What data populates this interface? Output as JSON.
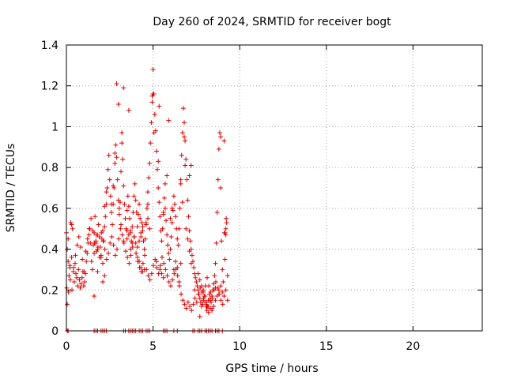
{
  "chart_data": {
    "type": "scatter",
    "title": "Day 260 of 2024, SRMTID for receiver bogt",
    "xlabel": "GPS time / hours",
    "ylabel": "SRMTID / TECUs",
    "xlim": [
      0,
      24
    ],
    "ylim": [
      0,
      1.4
    ],
    "xticks": [
      0,
      5,
      10,
      15,
      20
    ],
    "xtick_labels": [
      "0",
      "5",
      "10",
      "15",
      "20"
    ],
    "yticks": [
      0,
      0.2,
      0.4,
      0.6,
      0.8,
      1.0,
      1.2,
      1.4
    ],
    "ytick_labels": [
      "0",
      "0.2",
      "0.4",
      "0.6",
      "0.8",
      "1",
      "1.2",
      "1.4"
    ],
    "grid": true,
    "marker": "+",
    "color": "#dd0000",
    "series": [
      {
        "name": "SRMTID",
        "x": [
          0.0,
          0.05,
          0.1,
          0.15,
          0.2,
          0.25,
          0.3,
          0.35,
          0.4,
          0.45,
          0.5,
          0.55,
          0.6,
          0.65,
          0.7,
          0.75,
          0.8,
          0.85,
          0.9,
          0.95,
          1.0,
          1.05,
          1.1,
          1.15,
          1.2,
          1.25,
          1.3,
          1.35,
          1.4,
          1.45,
          1.5,
          1.55,
          1.6,
          1.65,
          1.7,
          1.75,
          1.8,
          1.85,
          1.9,
          1.95,
          2.0,
          2.05,
          2.1,
          2.15,
          2.2,
          2.25,
          2.3,
          2.35,
          2.4,
          2.45,
          2.5,
          2.55,
          2.6,
          2.65,
          2.7,
          2.75,
          2.8,
          2.85,
          2.9,
          2.95,
          3.0,
          3.05,
          3.1,
          3.15,
          3.2,
          3.25,
          3.3,
          3.35,
          3.4,
          3.45,
          3.5,
          3.55,
          3.6,
          3.65,
          3.7,
          3.75,
          3.8,
          3.85,
          3.9,
          3.95,
          4.0,
          4.05,
          4.1,
          4.15,
          4.2,
          4.25,
          4.3,
          4.35,
          4.4,
          4.45,
          4.5,
          4.55,
          4.6,
          4.65,
          4.7,
          4.75,
          4.8,
          4.85,
          4.9,
          4.95,
          5.0,
          5.05,
          5.1,
          5.15,
          5.2,
          5.25,
          5.3,
          5.35,
          5.4,
          5.45,
          5.5,
          5.55,
          5.6,
          5.65,
          5.7,
          5.75,
          5.8,
          5.85,
          5.9,
          5.95,
          6.0,
          6.05,
          6.1,
          6.15,
          6.2,
          6.25,
          6.3,
          6.35,
          6.4,
          6.45,
          6.5,
          6.55,
          6.6,
          6.65,
          6.7,
          6.75,
          6.8,
          6.85,
          6.9,
          6.95,
          7.0,
          7.05,
          7.1,
          7.15,
          7.2,
          7.25,
          7.3,
          7.35,
          7.4,
          7.45,
          7.5,
          7.55,
          7.6,
          7.65,
          7.7,
          7.75,
          7.8,
          7.85,
          7.9,
          7.95,
          8.0,
          8.05,
          8.1,
          8.15,
          8.2,
          8.25,
          8.3,
          8.35,
          8.4,
          8.45,
          8.5,
          8.55,
          8.6,
          8.65,
          8.7,
          8.75,
          8.8,
          8.85,
          8.9,
          8.95,
          9.0,
          9.05,
          9.1,
          9.15,
          9.2,
          9.25,
          9.3,
          0.02,
          0.12,
          0.22,
          0.32,
          0.42,
          0.52,
          0.62,
          0.72,
          0.82,
          0.92,
          1.02,
          1.12,
          1.22,
          1.32,
          1.42,
          1.52,
          1.62,
          1.72,
          1.82,
          1.92,
          2.02,
          2.12,
          2.22,
          2.32,
          2.42,
          2.52,
          2.62,
          2.72,
          2.82,
          2.92,
          3.02,
          3.12,
          3.22,
          3.32,
          3.42,
          3.52,
          3.62,
          3.72,
          3.82,
          3.92,
          4.02,
          4.12,
          4.22,
          4.32,
          4.42,
          4.52,
          4.62,
          4.72,
          4.82,
          4.92,
          5.02,
          5.12,
          5.22,
          5.32,
          5.42,
          5.52,
          5.62,
          5.72,
          5.82,
          5.92,
          6.02,
          6.12,
          6.22,
          6.32,
          6.42,
          6.52,
          6.62,
          6.72,
          6.82,
          6.92,
          7.02,
          7.12,
          7.22,
          7.32,
          7.42,
          7.52,
          7.62,
          7.72,
          7.82,
          7.92,
          8.02,
          8.12,
          8.22,
          8.32,
          8.42,
          8.52,
          8.62,
          8.72,
          8.82,
          8.92,
          9.02,
          9.12,
          9.22,
          2.6,
          2.7,
          2.8,
          2.9,
          3.0,
          3.2,
          3.3,
          3.6,
          4.95,
          5.0,
          5.05,
          5.3,
          5.35,
          5.9,
          6.8,
          6.85,
          7.1,
          7.2,
          8.9,
          9.1,
          9.15,
          9.2,
          0.1,
          0.2,
          0.3,
          1.6,
          1.7,
          1.8,
          2.0,
          2.1,
          2.2,
          2.3,
          3.05,
          3.15,
          3.5,
          3.7,
          3.8,
          4.1,
          4.2,
          4.3,
          4.4,
          4.5,
          4.6,
          4.7,
          5.6,
          5.7,
          5.8,
          6.0,
          6.1,
          6.6,
          6.7,
          6.9,
          7.0,
          7.1,
          7.2,
          7.6,
          7.7,
          7.8,
          7.9,
          8.0,
          8.1,
          8.2,
          8.3,
          8.4,
          8.5,
          8.6,
          8.7,
          8.8,
          8.9,
          9.0,
          9.1,
          9.2,
          0.05,
          1.6,
          1.8,
          2.1,
          2.2,
          3.3,
          3.5,
          3.6,
          3.7,
          3.9,
          4.0,
          4.1,
          4.2,
          4.3,
          4.4,
          4.6,
          4.7,
          4.8,
          5.2,
          5.4,
          5.5,
          5.6,
          6.2,
          6.3,
          6.4,
          6.5,
          6.6,
          7.4,
          7.7,
          7.9,
          8.1,
          8.2,
          8.3,
          8.4,
          8.6,
          8.8,
          9.3
        ],
        "y": [
          0.48,
          0.4,
          0.34,
          0.27,
          0.31,
          0.53,
          0.52,
          0.5,
          0.29,
          0.24,
          0.33,
          0.28,
          0.26,
          0.22,
          0.3,
          0.25,
          0.21,
          0.23,
          0.26,
          0.29,
          0.22,
          0.24,
          0.28,
          0.34,
          0.38,
          0.43,
          0.47,
          0.5,
          0.43,
          0.34,
          0.3,
          0.42,
          0.48,
          0.56,
          0.44,
          0.39,
          0.47,
          0.52,
          0.46,
          0.41,
          0.37,
          0.45,
          0.49,
          0.44,
          0.51,
          0.56,
          0.62,
          0.7,
          0.79,
          0.86,
          0.74,
          0.66,
          0.58,
          0.52,
          0.62,
          0.7,
          0.82,
          0.91,
          0.85,
          0.74,
          0.64,
          0.57,
          0.63,
          0.78,
          0.92,
          0.84,
          0.71,
          0.62,
          0.55,
          0.5,
          0.59,
          0.66,
          0.61,
          0.55,
          0.49,
          0.44,
          0.51,
          0.58,
          0.66,
          0.72,
          0.64,
          0.58,
          0.51,
          0.57,
          0.62,
          0.55,
          0.48,
          0.53,
          0.49,
          0.44,
          0.4,
          0.45,
          0.52,
          0.6,
          0.68,
          0.75,
          0.82,
          0.92,
          1.02,
          1.12,
          1.28,
          1.16,
          1.06,
          0.98,
          0.88,
          0.79,
          0.7,
          0.63,
          0.56,
          0.49,
          0.44,
          0.5,
          0.57,
          0.65,
          0.6,
          0.54,
          0.47,
          0.42,
          0.38,
          0.35,
          0.4,
          0.46,
          0.53,
          0.59,
          0.66,
          0.62,
          0.56,
          0.5,
          0.45,
          0.42,
          0.5,
          0.6,
          0.72,
          0.86,
          0.97,
          1.09,
          1.02,
          0.93,
          0.84,
          0.74,
          0.64,
          0.56,
          0.49,
          0.44,
          0.4,
          0.37,
          0.34,
          0.31,
          0.28,
          0.26,
          0.24,
          0.22,
          0.2,
          0.18,
          0.16,
          0.14,
          0.12,
          0.13,
          0.15,
          0.17,
          0.14,
          0.12,
          0.1,
          0.12,
          0.15,
          0.18,
          0.16,
          0.14,
          0.17,
          0.2,
          0.23,
          0.27,
          0.33,
          0.43,
          0.58,
          0.74,
          0.89,
          0.97,
          0.7,
          0.44,
          0.3,
          0.24,
          0.17,
          0.35,
          0.47,
          0.53,
          0.27,
          0.21,
          0.19,
          0.25,
          0.2,
          0.31,
          0.37,
          0.42,
          0.46,
          0.41,
          0.35,
          0.29,
          0.39,
          0.45,
          0.5,
          0.55,
          0.49,
          0.43,
          0.47,
          0.41,
          0.36,
          0.48,
          0.44,
          0.4,
          0.35,
          0.38,
          0.43,
          0.46,
          0.42,
          0.37,
          0.4,
          0.45,
          0.5,
          0.47,
          0.43,
          0.39,
          0.36,
          0.33,
          0.37,
          0.41,
          0.46,
          0.38,
          0.34,
          0.31,
          0.29,
          0.33,
          0.37,
          0.3,
          0.27,
          0.25,
          0.28,
          0.32,
          0.35,
          0.31,
          0.28,
          0.32,
          0.36,
          0.33,
          0.3,
          0.27,
          0.24,
          0.22,
          0.25,
          0.28,
          0.3,
          0.27,
          0.22,
          0.18,
          0.15,
          0.13,
          0.11,
          0.14,
          0.12,
          0.1,
          0.13,
          0.16,
          0.14,
          0.18,
          0.21,
          0.19,
          0.16,
          0.22,
          0.26,
          0.22,
          0.19,
          0.16,
          0.2,
          0.24,
          0.21,
          0.18,
          0.15,
          0.13,
          0.48,
          0.55,
          0.62,
          0.71,
          0.87,
          1.21,
          1.11,
          0.97,
          1.19,
          1.08,
          1.15,
          1.16,
          0.97,
          0.83,
          1.1,
          1.03,
          0.95,
          0.81,
          0.76,
          0.81,
          0.95,
          0.93,
          0.48,
          0.5,
          0.45,
          0.32,
          0.36,
          0.38,
          0.43,
          0.4,
          0.36,
          0.33,
          0.61,
          0.68,
          0.6,
          0.52,
          0.49,
          0.4,
          0.43,
          0.36,
          0.34,
          0.31,
          0.29,
          0.3,
          0.52,
          0.62,
          0.58,
          0.72,
          0.76,
          0.55,
          0.6,
          0.74,
          0.63,
          0.5,
          0.45,
          0.39,
          0.33,
          0.28,
          0.25,
          0.22,
          0.2,
          0.17,
          0.14,
          0.12,
          0.11,
          0.1,
          0.12,
          0.15,
          0.17,
          0.2,
          0.22,
          0.19,
          0.17,
          0.2,
          0.13,
          0.17,
          0.29,
          0.24,
          0.27,
          0.44,
          0.45,
          0.47,
          0.48,
          0.46,
          0.43,
          0.41,
          0.44,
          0.46,
          0.51,
          0.53,
          0.55,
          0.5,
          0.34,
          0.3,
          0.28,
          0.26,
          0.3,
          0.34,
          0.31,
          0.24,
          0.33,
          0.2,
          0.07,
          0.19,
          0.12,
          0.09,
          0.15,
          0.11,
          0.21,
          0.18,
          0.15
        ],
        "zero_marks_x": [
          0.05,
          0.1,
          1.6,
          1.7,
          1.8,
          2.0,
          2.1,
          2.2,
          2.3,
          3.3,
          3.4,
          3.6,
          3.7,
          3.8,
          3.9,
          4.0,
          4.2,
          4.3,
          4.4,
          4.6,
          4.7,
          4.8,
          5.6,
          5.7,
          5.8,
          6.2,
          6.4,
          7.3,
          7.4,
          7.6,
          7.7,
          7.8,
          8.0,
          8.1,
          8.2,
          8.3,
          8.4,
          8.6,
          8.7,
          8.8,
          9.0
        ]
      }
    ]
  }
}
